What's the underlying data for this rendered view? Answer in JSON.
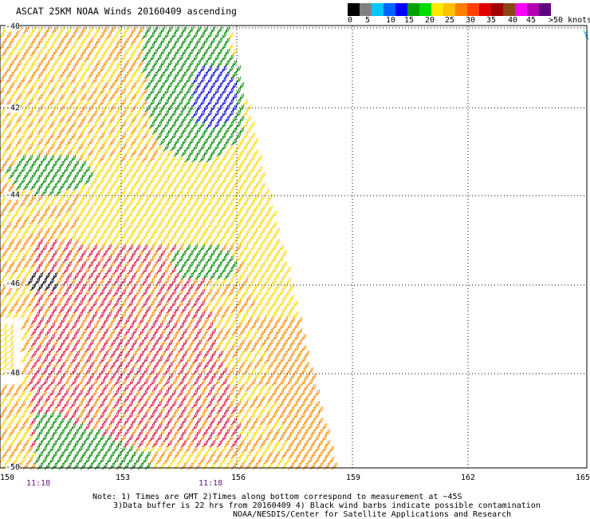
{
  "title": "ASCAT 25KM NOAA Winds 20160409 ascending",
  "legend": {
    "colors": [
      "#000000",
      "#808080",
      "#00c8ff",
      "#0064ff",
      "#0000ff",
      "#00a000",
      "#00dc00",
      "#ffe800",
      "#ffc000",
      "#ff8000",
      "#ff4000",
      "#e00000",
      "#a00000",
      "#8b4513",
      "#ff00ff",
      "#b000b0",
      "#600080"
    ],
    "labels": [
      "0",
      "5",
      "10",
      "15",
      "20",
      "25",
      "30",
      "35",
      "40",
      "45",
      ">50 knots"
    ]
  },
  "lon_labels": [
    "150",
    "153",
    "156",
    "159",
    "162",
    "165"
  ],
  "lat_labels": [
    "-40",
    "-42",
    "-44",
    "-46",
    "-48",
    "-50"
  ],
  "time_labels": [
    "11:18",
    "11:18"
  ],
  "notes": [
    "Note: 1) Times are GMT 2)Times along bottom correspond to measurement at ~45S",
    "3)Data buffer is 22 hrs from 20160409 4) Black wind barbs indicate possible contamination",
    "NOAA/NESDIS/Center for Satellite Applications and Research"
  ],
  "barb_colors": {
    "yellow": "#ffd800",
    "orange": "#ff8c00",
    "red": "#dc143c",
    "green": "#008c00",
    "blue": "#0000e0",
    "black": "#000000",
    "cyan": "#00c8ff"
  }
}
